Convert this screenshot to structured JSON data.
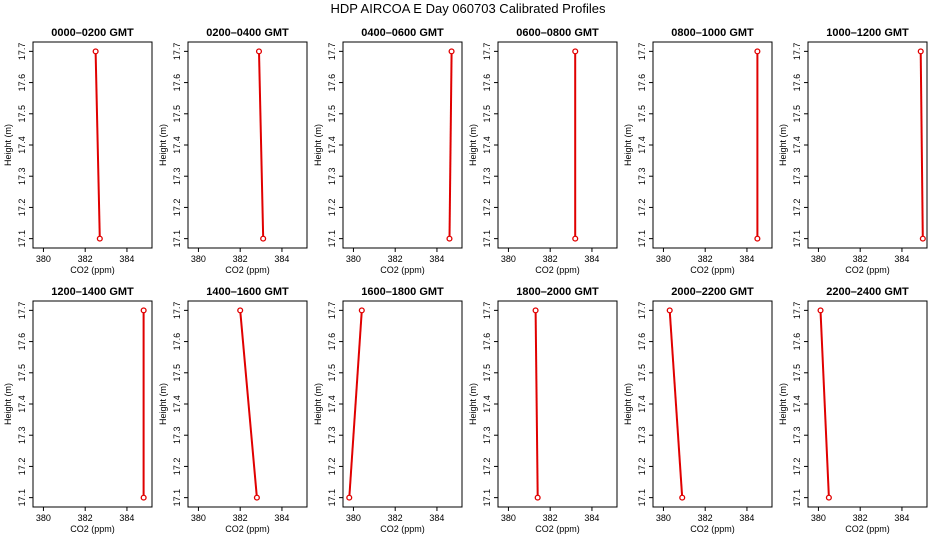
{
  "title": "HDP  AIRCOA E  Day 060703  Calibrated Profiles",
  "chart_data": {
    "type": "line",
    "xlabel": "CO2 (ppm)",
    "ylabel": "Height (m)",
    "xlim": [
      379.5,
      385.2
    ],
    "ylim": [
      17.07,
      17.73
    ],
    "xticks": [
      380,
      382,
      384
    ],
    "yticks": [
      17.1,
      17.2,
      17.3,
      17.4,
      17.5,
      17.6,
      17.7
    ],
    "panels": [
      {
        "title": "0000–0200 GMT",
        "points": [
          {
            "x": 382.5,
            "y": 17.7
          },
          {
            "x": 382.7,
            "y": 17.1
          }
        ]
      },
      {
        "title": "0200–0400 GMT",
        "points": [
          {
            "x": 382.9,
            "y": 17.7
          },
          {
            "x": 383.1,
            "y": 17.1
          }
        ]
      },
      {
        "title": "0400–0600 GMT",
        "points": [
          {
            "x": 384.7,
            "y": 17.7
          },
          {
            "x": 384.6,
            "y": 17.1
          }
        ]
      },
      {
        "title": "0600–0800 GMT",
        "points": [
          {
            "x": 383.2,
            "y": 17.7
          },
          {
            "x": 383.2,
            "y": 17.1
          }
        ]
      },
      {
        "title": "0800–1000 GMT",
        "points": [
          {
            "x": 384.5,
            "y": 17.7
          },
          {
            "x": 384.5,
            "y": 17.1
          }
        ]
      },
      {
        "title": "1000–1200 GMT",
        "points": [
          {
            "x": 384.9,
            "y": 17.7
          },
          {
            "x": 385.0,
            "y": 17.1
          }
        ]
      },
      {
        "title": "1200–1400 GMT",
        "points": [
          {
            "x": 384.8,
            "y": 17.7
          },
          {
            "x": 384.8,
            "y": 17.1
          }
        ]
      },
      {
        "title": "1400–1600 GMT",
        "points": [
          {
            "x": 382.0,
            "y": 17.7
          },
          {
            "x": 382.8,
            "y": 17.1
          }
        ]
      },
      {
        "title": "1600–1800 GMT",
        "points": [
          {
            "x": 380.4,
            "y": 17.7
          },
          {
            "x": 379.8,
            "y": 17.1
          }
        ]
      },
      {
        "title": "1800–2000 GMT",
        "points": [
          {
            "x": 381.3,
            "y": 17.7
          },
          {
            "x": 381.4,
            "y": 17.1
          }
        ]
      },
      {
        "title": "2000–2200 GMT",
        "points": [
          {
            "x": 380.3,
            "y": 17.7
          },
          {
            "x": 380.9,
            "y": 17.1
          }
        ]
      },
      {
        "title": "2200–2400 GMT",
        "points": [
          {
            "x": 380.1,
            "y": 17.7
          },
          {
            "x": 380.5,
            "y": 17.1
          }
        ]
      }
    ]
  }
}
